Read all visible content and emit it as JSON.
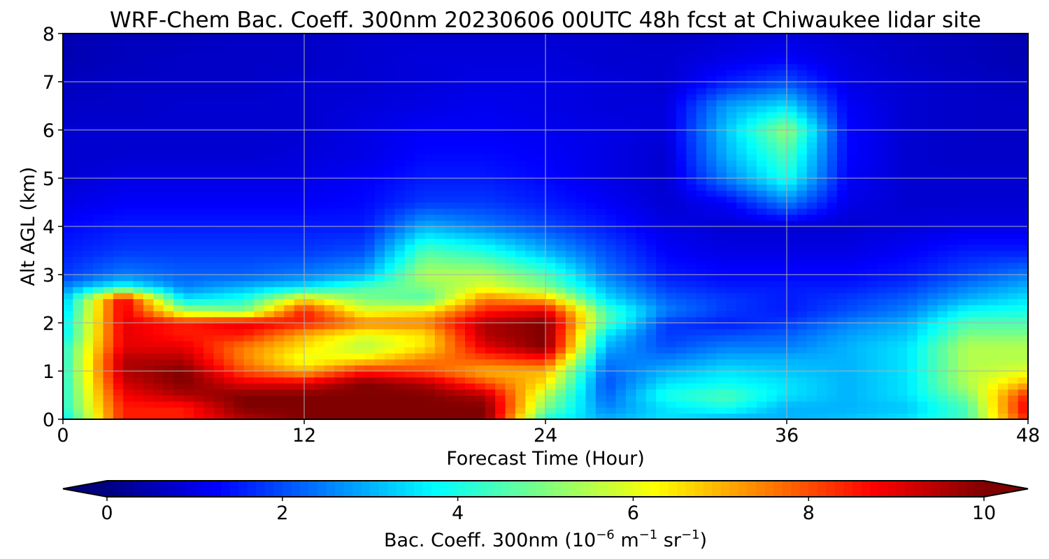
{
  "chart_data": {
    "type": "heatmap",
    "title": "WRF-Chem Bac. Coeff. 300nm  20230606 00UTC 48h fcst at Chiwaukee lidar site",
    "xlabel": "Forecast Time (Hour)",
    "ylabel": "Alt AGL (km)",
    "xlim": [
      0,
      48
    ],
    "ylim": [
      0,
      8
    ],
    "xticks": [
      "0",
      "12",
      "24",
      "36",
      "48"
    ],
    "yticks": [
      "0",
      "1",
      "2",
      "3",
      "4",
      "5",
      "6",
      "7",
      "8"
    ],
    "grid": true,
    "colormap": "jet",
    "colorbar": {
      "orientation": "horizontal",
      "position": "bottom",
      "range": [
        0,
        10
      ],
      "ticks": [
        "0",
        "2",
        "4",
        "6",
        "8",
        "10"
      ],
      "extend": "both",
      "label_main": "Bac. Coeff. 300nm  (10",
      "label_exp1": "−6",
      "label_mid": " m",
      "label_exp2": "−1",
      "label_mid2": " sr",
      "label_exp3": "−1",
      "label_end": ")"
    },
    "x": [
      0,
      3,
      6,
      9,
      12,
      15,
      18,
      21,
      24,
      27,
      30,
      33,
      36,
      39,
      42,
      45,
      48
    ],
    "y": [
      0,
      0.25,
      0.5,
      0.75,
      1.0,
      1.25,
      1.5,
      1.75,
      2.0,
      2.25,
      2.5,
      2.75,
      3.0,
      3.5,
      4.0,
      4.5,
      5.0,
      5.5,
      6.0,
      6.5,
      7.0,
      7.5,
      8.0
    ],
    "values": [
      [
        3.5,
        8.5,
        8.5,
        9.5,
        10.0,
        10.0,
        10.0,
        10.0,
        4.0,
        3.0,
        3.5,
        3.0,
        3.0,
        3.2,
        3.5,
        4.5,
        8.5
      ],
      [
        4.0,
        8.5,
        8.5,
        10.0,
        10.0,
        10.0,
        10.0,
        10.0,
        5.0,
        2.5,
        3.5,
        4.0,
        3.0,
        3.0,
        3.2,
        4.5,
        9.0
      ],
      [
        4.0,
        8.8,
        9.5,
        10.0,
        10.0,
        10.0,
        10.0,
        9.5,
        5.5,
        2.2,
        4.0,
        4.5,
        3.5,
        3.0,
        3.5,
        5.0,
        8.5
      ],
      [
        4.0,
        9.2,
        10.0,
        9.0,
        9.0,
        10.0,
        9.5,
        8.0,
        6.5,
        2.0,
        3.5,
        3.8,
        3.5,
        3.0,
        3.5,
        5.5,
        7.0
      ],
      [
        4.0,
        9.5,
        10.0,
        8.0,
        7.0,
        8.5,
        8.0,
        7.0,
        7.0,
        2.2,
        3.0,
        3.5,
        3.2,
        3.0,
        3.5,
        5.5,
        6.0
      ],
      [
        4.0,
        9.5,
        9.5,
        7.5,
        6.0,
        6.5,
        7.5,
        8.0,
        8.5,
        2.5,
        2.5,
        3.0,
        3.0,
        3.0,
        3.5,
        5.5,
        5.5
      ],
      [
        4.0,
        9.0,
        9.0,
        7.5,
        6.5,
        5.5,
        6.5,
        9.0,
        10.0,
        3.0,
        2.0,
        2.5,
        2.5,
        3.0,
        3.5,
        5.5,
        5.5
      ],
      [
        3.5,
        9.0,
        8.5,
        8.5,
        7.0,
        6.0,
        6.5,
        9.5,
        10.0,
        3.5,
        1.8,
        2.0,
        2.2,
        2.8,
        3.2,
        5.0,
        5.0
      ],
      [
        3.5,
        9.0,
        8.5,
        9.0,
        8.5,
        7.5,
        7.5,
        9.5,
        10.0,
        4.5,
        1.8,
        1.5,
        1.8,
        2.5,
        3.0,
        4.5,
        4.5
      ],
      [
        3.2,
        9.0,
        5.5,
        5.0,
        8.5,
        6.0,
        6.5,
        8.5,
        9.0,
        4.5,
        2.5,
        1.8,
        1.5,
        2.0,
        2.5,
        3.8,
        4.0
      ],
      [
        3.0,
        9.0,
        3.5,
        4.0,
        6.5,
        5.0,
        4.5,
        7.5,
        7.0,
        3.5,
        2.2,
        1.8,
        1.5,
        1.8,
        2.2,
        3.0,
        3.5
      ],
      [
        2.5,
        4.0,
        2.5,
        3.0,
        3.5,
        4.5,
        5.0,
        6.0,
        5.0,
        3.0,
        1.8,
        1.5,
        1.5,
        1.5,
        1.8,
        2.5,
        3.0
      ],
      [
        1.8,
        2.5,
        2.2,
        2.2,
        2.5,
        3.0,
        5.5,
        5.5,
        4.5,
        2.5,
        1.5,
        1.3,
        1.3,
        1.3,
        1.5,
        2.0,
        2.5
      ],
      [
        1.5,
        1.8,
        1.8,
        1.8,
        1.8,
        2.0,
        4.5,
        4.0,
        3.0,
        2.0,
        1.2,
        1.0,
        1.0,
        1.0,
        1.2,
        1.5,
        1.5
      ],
      [
        1.3,
        1.5,
        1.5,
        1.5,
        1.5,
        1.5,
        3.0,
        2.5,
        2.0,
        1.5,
        1.0,
        0.8,
        0.8,
        0.8,
        0.9,
        1.0,
        1.0
      ],
      [
        1.0,
        1.2,
        1.2,
        1.2,
        1.2,
        1.3,
        1.8,
        1.8,
        1.5,
        1.2,
        0.8,
        1.2,
        2.5,
        1.0,
        0.8,
        0.8,
        0.8
      ],
      [
        0.8,
        1.0,
        1.0,
        1.0,
        1.0,
        1.2,
        1.5,
        1.5,
        1.3,
        1.0,
        0.8,
        2.5,
        4.0,
        1.2,
        0.8,
        0.8,
        0.8
      ],
      [
        0.8,
        0.8,
        0.8,
        0.8,
        0.9,
        1.0,
        1.3,
        1.3,
        1.2,
        1.0,
        0.8,
        3.0,
        4.5,
        1.3,
        0.8,
        0.7,
        0.7
      ],
      [
        0.8,
        0.8,
        0.8,
        0.8,
        0.8,
        1.0,
        1.2,
        1.2,
        1.1,
        1.0,
        0.9,
        3.2,
        5.2,
        1.3,
        0.8,
        0.7,
        0.7
      ],
      [
        0.7,
        0.7,
        0.8,
        0.8,
        0.8,
        0.9,
        1.0,
        1.1,
        1.0,
        0.9,
        0.9,
        2.8,
        3.5,
        1.2,
        0.8,
        0.7,
        0.7
      ],
      [
        0.6,
        0.7,
        0.7,
        0.7,
        0.8,
        0.8,
        0.9,
        1.0,
        1.0,
        0.9,
        0.8,
        1.5,
        2.0,
        1.0,
        0.8,
        0.7,
        0.6
      ],
      [
        0.5,
        0.6,
        0.7,
        0.7,
        0.7,
        0.8,
        0.9,
        0.9,
        0.9,
        0.8,
        0.8,
        1.0,
        1.2,
        0.9,
        0.7,
        0.6,
        0.5
      ],
      [
        0.5,
        0.6,
        0.6,
        0.7,
        0.7,
        0.8,
        0.8,
        0.8,
        0.8,
        0.8,
        0.7,
        0.8,
        0.9,
        0.8,
        0.7,
        0.6,
        0.5
      ]
    ]
  }
}
